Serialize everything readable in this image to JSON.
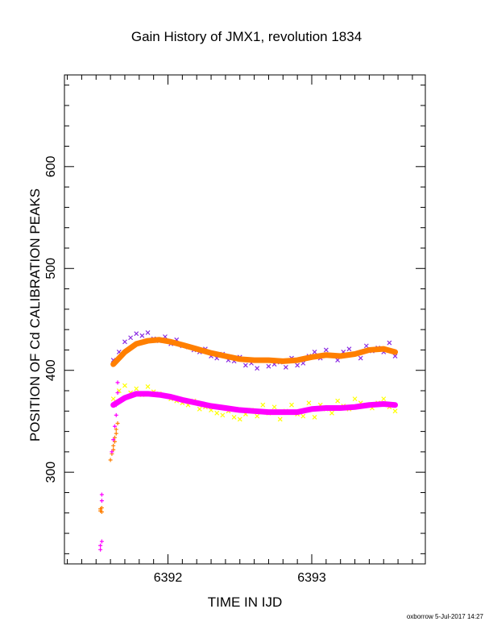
{
  "chart_data": {
    "type": "scatter",
    "title": "Gain History of JMX1, revolution 1834",
    "xlabel": "TIME IN IJD",
    "ylabel": "POSITION OF Cd CALIBRATION PEAKS",
    "xlim": [
      6391.28,
      6393.79
    ],
    "ylim": [
      210,
      690
    ],
    "x_ticks": [
      6392,
      6393
    ],
    "y_ticks": [
      300,
      400,
      500,
      600
    ],
    "grid": false,
    "colors": {
      "upper_points": "#8a2be2",
      "upper_fit": "#ff7f00",
      "lower_points": "#ffff00",
      "lower_fit": "#ff00ff",
      "early_orange": "#ff7f00",
      "early_magenta": "#ff00ff"
    },
    "series": [
      {
        "marker": "x",
        "color": "#8a2be2",
        "kind": "points",
        "x": [
          6391.62,
          6391.66,
          6391.7,
          6391.74,
          6391.78,
          6391.82,
          6391.86,
          6391.9,
          6391.94,
          6391.98,
          6392.02,
          6392.06,
          6392.1,
          6392.14,
          6392.18,
          6392.22,
          6392.26,
          6392.3,
          6392.34,
          6392.38,
          6392.42,
          6392.46,
          6392.5,
          6392.54,
          6392.58,
          6392.62,
          6392.66,
          6392.7,
          6392.74,
          6392.78,
          6392.82,
          6392.86,
          6392.9,
          6392.94,
          6392.98,
          6393.02,
          6393.06,
          6393.1,
          6393.14,
          6393.18,
          6393.22,
          6393.26,
          6393.3,
          6393.34,
          6393.38,
          6393.42,
          6393.46,
          6393.5,
          6393.54,
          6393.58
        ],
        "y": [
          410,
          418,
          428,
          432,
          436,
          434,
          437,
          431,
          429,
          433,
          426,
          430,
          424,
          423,
          420,
          418,
          421,
          414,
          412,
          416,
          410,
          409,
          413,
          405,
          407,
          402,
          410,
          404,
          406,
          408,
          403,
          412,
          405,
          407,
          414,
          418,
          412,
          420,
          415,
          410,
          418,
          421,
          416,
          412,
          424,
          419,
          422,
          418,
          427,
          414
        ]
      },
      {
        "marker": "line",
        "color": "#ff7f00",
        "kind": "fit",
        "x": [
          6391.62,
          6391.7,
          6391.78,
          6391.86,
          6391.94,
          6392.02,
          6392.1,
          6392.2,
          6392.3,
          6392.4,
          6392.5,
          6392.6,
          6392.7,
          6392.8,
          6392.9,
          6393.0,
          6393.1,
          6393.2,
          6393.3,
          6393.4,
          6393.5,
          6393.58
        ],
        "y": [
          406,
          418,
          426,
          429,
          430,
          428,
          425,
          421,
          417,
          414,
          411,
          410,
          410,
          409,
          410,
          413,
          415,
          414,
          416,
          420,
          421,
          418
        ]
      },
      {
        "marker": "x",
        "color": "#ffff00",
        "kind": "points",
        "x": [
          6391.62,
          6391.66,
          6391.7,
          6391.74,
          6391.78,
          6391.82,
          6391.86,
          6391.9,
          6391.94,
          6391.98,
          6392.02,
          6392.06,
          6392.1,
          6392.14,
          6392.18,
          6392.22,
          6392.26,
          6392.3,
          6392.34,
          6392.38,
          6392.42,
          6392.46,
          6392.5,
          6392.54,
          6392.58,
          6392.62,
          6392.66,
          6392.7,
          6392.74,
          6392.78,
          6392.82,
          6392.86,
          6392.9,
          6392.94,
          6392.98,
          6393.02,
          6393.06,
          6393.1,
          6393.14,
          6393.18,
          6393.22,
          6393.26,
          6393.3,
          6393.34,
          6393.38,
          6393.42,
          6393.46,
          6393.5,
          6393.54,
          6393.58
        ],
        "y": [
          372,
          380,
          385,
          378,
          382,
          376,
          384,
          379,
          377,
          375,
          372,
          370,
          368,
          366,
          370,
          362,
          364,
          361,
          358,
          356,
          360,
          354,
          352,
          357,
          361,
          355,
          366,
          358,
          364,
          352,
          360,
          366,
          357,
          355,
          368,
          354,
          366,
          362,
          358,
          370,
          365,
          362,
          372,
          368,
          366,
          363,
          368,
          372,
          364,
          360
        ]
      },
      {
        "marker": "line",
        "color": "#ff00ff",
        "kind": "fit",
        "x": [
          6391.62,
          6391.7,
          6391.78,
          6391.86,
          6391.94,
          6392.02,
          6392.1,
          6392.2,
          6392.3,
          6392.4,
          6392.5,
          6392.6,
          6392.7,
          6392.8,
          6392.9,
          6393.0,
          6393.1,
          6393.2,
          6393.3,
          6393.4,
          6393.5,
          6393.58
        ],
        "y": [
          366,
          373,
          377,
          377,
          376,
          374,
          371,
          368,
          365,
          363,
          361,
          360,
          359,
          359,
          359,
          362,
          363,
          363,
          364,
          366,
          367,
          366
        ]
      },
      {
        "marker": "+",
        "color": "#ff7f00",
        "kind": "points",
        "x": [
          6391.53,
          6391.53,
          6391.54,
          6391.54,
          6391.6,
          6391.61,
          6391.62,
          6391.62,
          6391.63,
          6391.63,
          6391.64,
          6391.64,
          6391.65
        ],
        "y": [
          262,
          264,
          265,
          261,
          312,
          318,
          322,
          326,
          330,
          334,
          338,
          342,
          348
        ]
      },
      {
        "marker": "+",
        "color": "#ff00ff",
        "kind": "points",
        "x": [
          6391.53,
          6391.53,
          6391.54,
          6391.54,
          6391.54,
          6391.61,
          6391.62,
          6391.63,
          6391.64,
          6391.64,
          6391.65,
          6391.65
        ],
        "y": [
          224,
          228,
          232,
          272,
          278,
          320,
          332,
          345,
          356,
          366,
          378,
          388
        ]
      }
    ]
  },
  "footer": "oxborrow  5-Jul-2017 14:27"
}
